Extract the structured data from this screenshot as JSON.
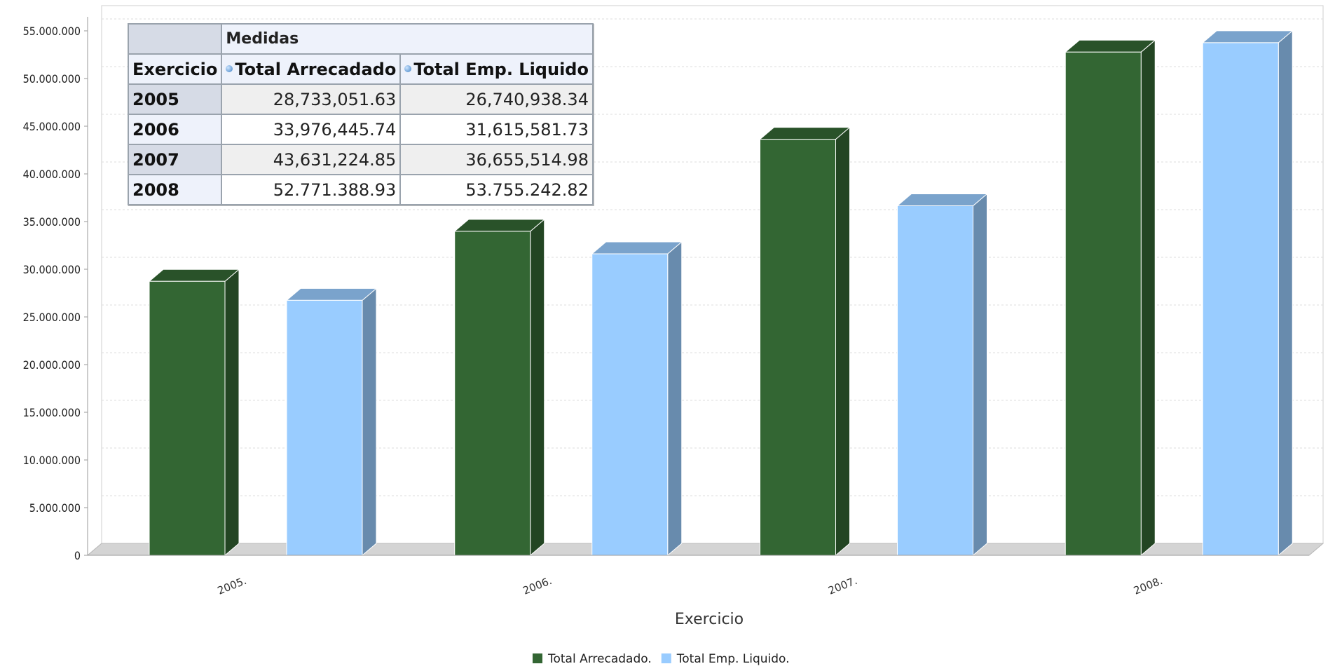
{
  "chart_data": {
    "type": "bar",
    "categories": [
      "2005.",
      "2006.",
      "2007.",
      "2008."
    ],
    "series": [
      {
        "name": "Total Arrecadado.",
        "color": "#336633",
        "values": [
          28733051.63,
          33976445.74,
          43631224.85,
          52771388.93
        ]
      },
      {
        "name": "Total Emp. Liquido.",
        "color": "#99ccff",
        "values": [
          26740938.34,
          31615581.73,
          36655514.98,
          53755242.82
        ]
      }
    ],
    "xlabel": "Exercicio",
    "ylabel": "",
    "ylim": [
      0,
      55000000
    ],
    "yticks": [
      "0",
      "5.000.000",
      "10.000.000",
      "15.000.000",
      "20.000.000",
      "25.000.000",
      "30.000.000",
      "35.000.000",
      "40.000.000",
      "45.000.000",
      "50.000.000",
      "55.000.000"
    ],
    "grid": true,
    "legend_position": "bottom",
    "style": "3d-bar"
  },
  "table": {
    "measures_label": "Medidas",
    "row_header": "Exercicio",
    "columns": [
      "Total Arrecadado",
      "Total Emp. Liquido"
    ],
    "rows": [
      {
        "year": "2005",
        "values": [
          "28,733,051.63",
          "26,740,938.34"
        ]
      },
      {
        "year": "2006",
        "values": [
          "33,976,445.74",
          "31,615,581.73"
        ]
      },
      {
        "year": "2007",
        "values": [
          "43,631,224.85",
          "36,655,514.98"
        ]
      },
      {
        "year": "2008",
        "values": [
          "52.771.388.93",
          "53.755.242.82"
        ]
      }
    ]
  }
}
